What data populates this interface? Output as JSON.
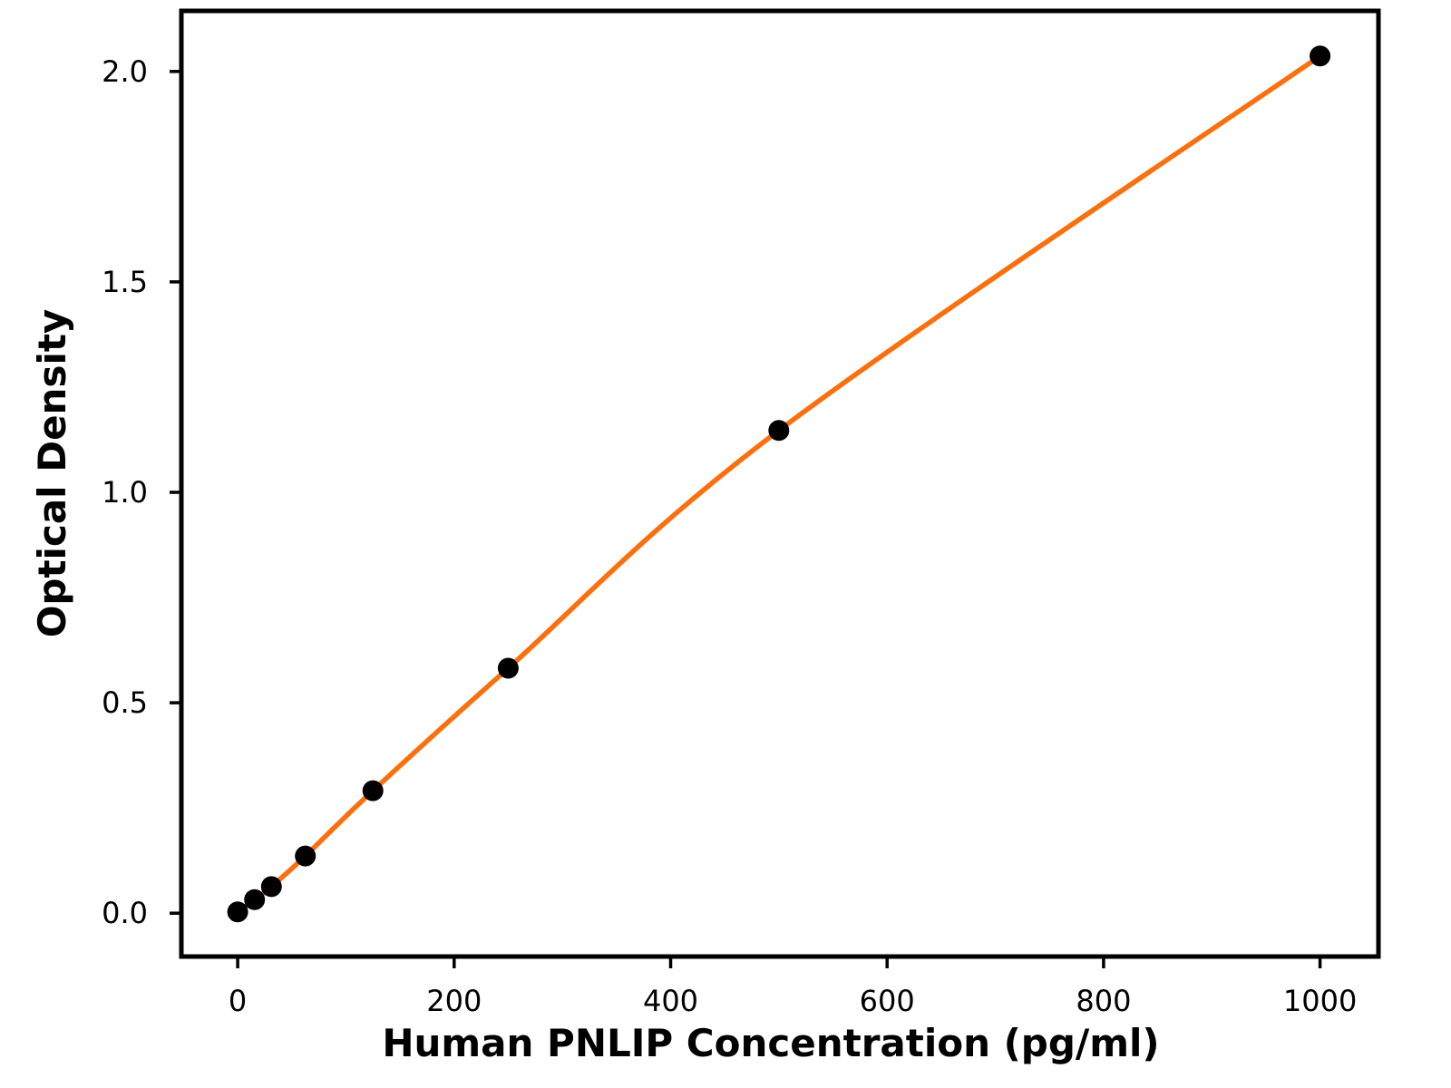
{
  "figure": {
    "background_color": "#FFFFFF",
    "description": "ELISA standard curve scatter plot with fitted line"
  },
  "chart_data": {
    "type": "scatter",
    "title": "",
    "xlabel": "Human PNLIP Concentration (pg/ml)",
    "ylabel": "Optical Density",
    "x": [
      0,
      15.6,
      31.2,
      62.5,
      125,
      250,
      500,
      1000
    ],
    "y": [
      0.003,
      0.032,
      0.063,
      0.136,
      0.291,
      0.582,
      1.147,
      2.037
    ],
    "series": [
      {
        "name": "standard-curve",
        "marker": "filled-circle",
        "line": "smooth-fitted-curve",
        "x": [
          0,
          15.6,
          31.2,
          62.5,
          125,
          250,
          500,
          1000
        ],
        "y": [
          0.003,
          0.032,
          0.063,
          0.136,
          0.291,
          0.582,
          1.147,
          2.037
        ]
      }
    ],
    "xticks": {
      "values": [
        0,
        200,
        400,
        600,
        800,
        1000
      ],
      "labels": [
        "0",
        "200",
        "400",
        "600",
        "800",
        "1000"
      ]
    },
    "yticks": {
      "values": [
        0.0,
        0.5,
        1.0,
        1.5,
        2.0
      ],
      "labels": [
        "0.0",
        "0.5",
        "1.0",
        "1.5",
        "2.0"
      ]
    },
    "xlim": [
      -52,
      1054
    ],
    "ylim": [
      -0.103,
      2.144
    ],
    "grid": false,
    "legend": null,
    "colors": {
      "line": "#FA700E",
      "marker": "#000000",
      "axis": "#000000",
      "tick_text": "#000000",
      "background": "#FFFFFF"
    }
  }
}
